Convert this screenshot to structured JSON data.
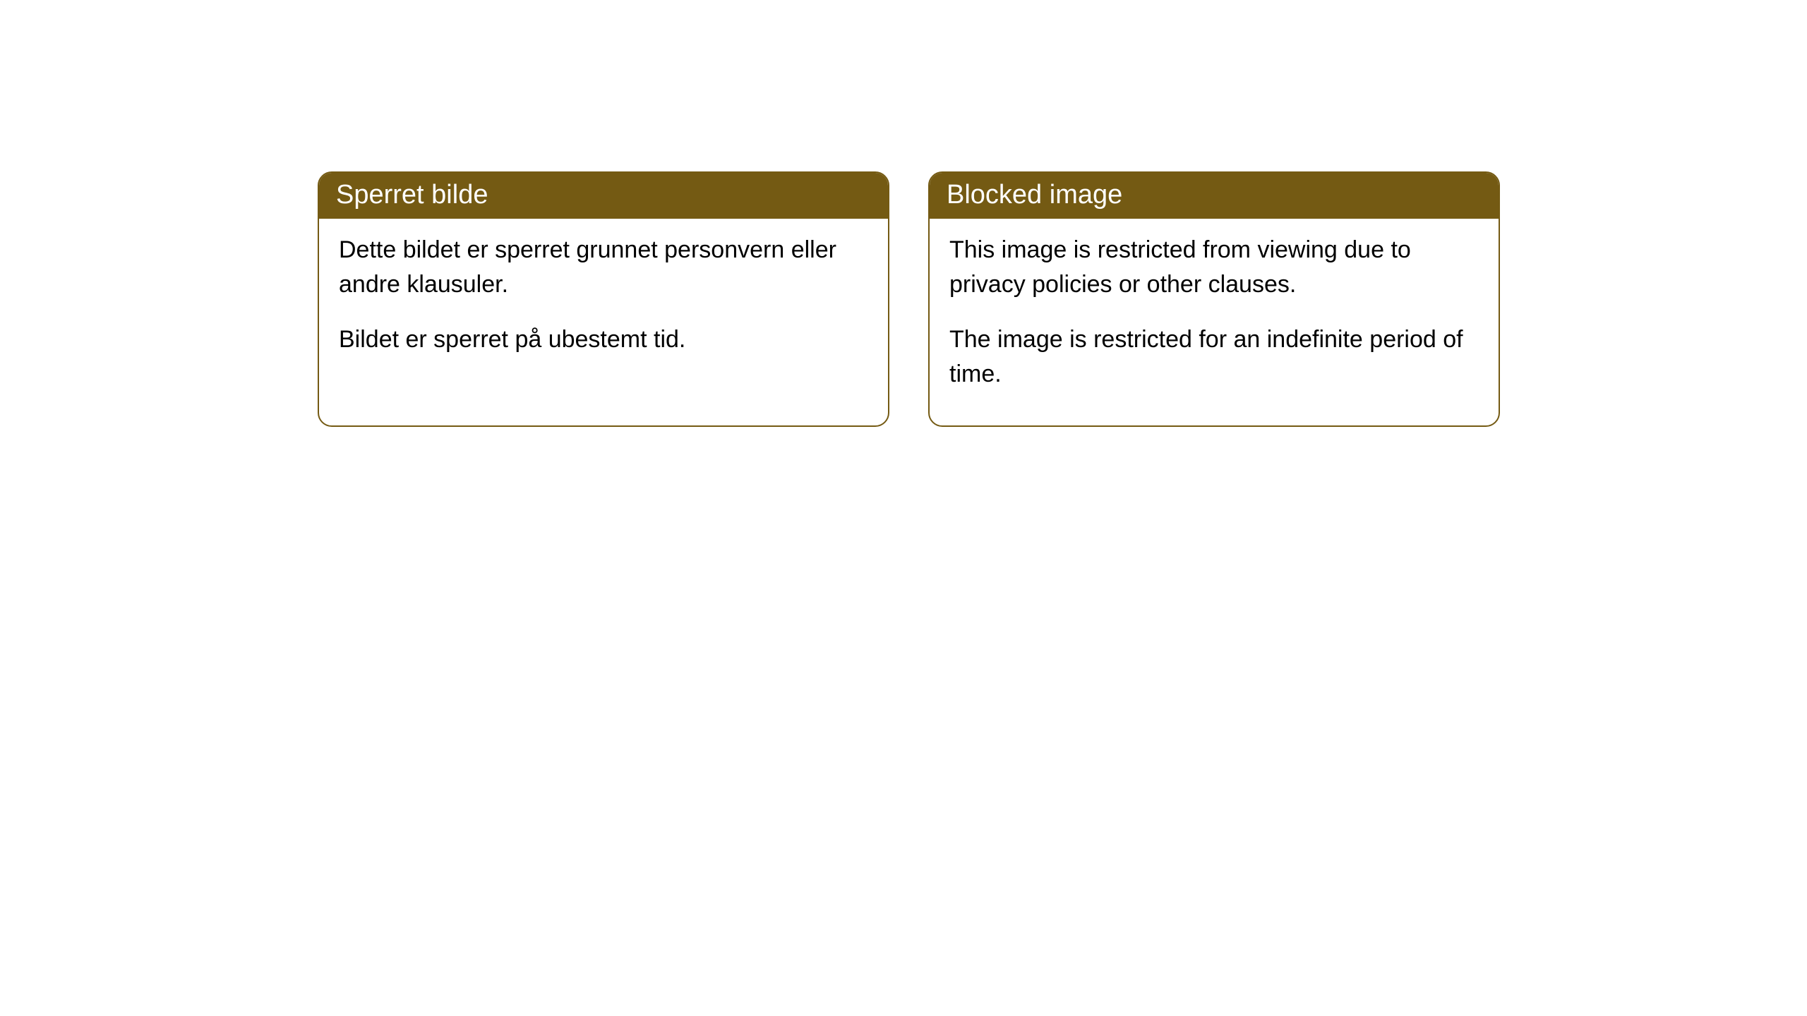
{
  "cards": [
    {
      "title": "Sperret bilde",
      "paragraph1": "Dette bildet er sperret grunnet personvern eller andre klausuler.",
      "paragraph2": "Bildet er sperret på ubestemt tid."
    },
    {
      "title": "Blocked image",
      "paragraph1": "This image is restricted from viewing due to privacy policies or other clauses.",
      "paragraph2": "The image is restricted for an indefinite period of time."
    }
  ],
  "style": {
    "header_bg_color": "#745a13",
    "header_text_color": "#ffffff",
    "border_color": "#745a13",
    "body_bg_color": "#ffffff",
    "body_text_color": "#000000",
    "border_radius": 20,
    "header_fontsize": 38,
    "body_fontsize": 34
  }
}
